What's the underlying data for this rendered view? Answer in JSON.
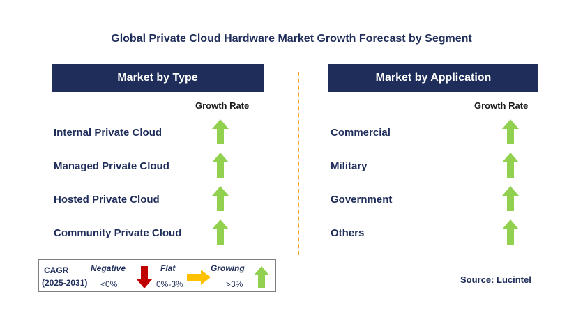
{
  "title": "Global Private Cloud Hardware Market Growth Forecast by Segment",
  "left_panel": {
    "header": "Market by Type",
    "growth_rate_label": "Growth Rate",
    "segments": [
      {
        "label": "Internal Private Cloud",
        "trend": "Growing"
      },
      {
        "label": "Managed Private Cloud",
        "trend": "Growing"
      },
      {
        "label": "Hosted Private Cloud",
        "trend": "Growing"
      },
      {
        "label": "Community Private Cloud",
        "trend": "Growing"
      }
    ]
  },
  "right_panel": {
    "header": "Market by Application",
    "growth_rate_label": "Growth Rate",
    "segments": [
      {
        "label": "Commercial",
        "trend": "Growing"
      },
      {
        "label": "Military",
        "trend": "Growing"
      },
      {
        "label": "Government",
        "trend": "Growing"
      },
      {
        "label": "Others",
        "trend": "Growing"
      }
    ]
  },
  "legend": {
    "cagr_label": "CAGR",
    "period": "(2025-2031)",
    "negative": {
      "label": "Negative",
      "range": "<0%",
      "icon": "red-down-arrow-icon",
      "color": "#c00000"
    },
    "flat": {
      "label": "Flat",
      "range": "0%-3%",
      "icon": "yellow-right-arrow-icon",
      "color": "#ffc000"
    },
    "growing": {
      "label": "Growing",
      "range": ">3%",
      "icon": "green-up-arrow-icon",
      "color": "#92d050"
    }
  },
  "source": "Source: Lucintel",
  "colors": {
    "header_bg": "#1f2d5a",
    "divider": "#f5a623",
    "up_arrow": "#92d050"
  }
}
